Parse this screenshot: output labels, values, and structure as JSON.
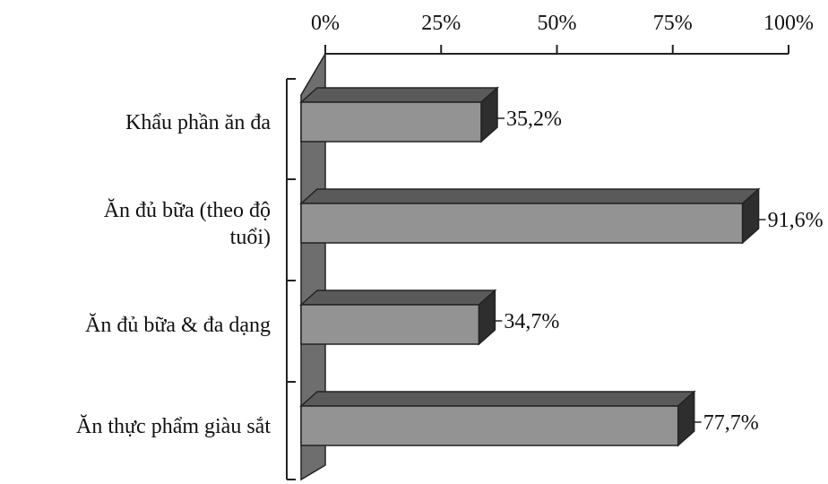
{
  "chart_data": {
    "type": "bar",
    "orientation": "horizontal",
    "style": "3d",
    "categories": [
      [
        "Khẩu phần ăn đa"
      ],
      [
        "Ăn đủ bữa (theo độ",
        "tuổi)"
      ],
      [
        "Ăn đủ bữa & đa dạng"
      ],
      [
        "Ăn thực phẩm giàu sắt"
      ]
    ],
    "values": [
      35.2,
      91.6,
      34.7,
      77.7
    ],
    "value_labels": [
      "35,2%",
      "91,6%",
      "34,7%",
      "77,7%"
    ],
    "xlim": [
      0,
      100
    ],
    "x_ticks": [
      0,
      25,
      50,
      75,
      100
    ],
    "x_tick_labels": [
      "0%",
      "25%",
      "50%",
      "75%",
      "100%"
    ],
    "x_axis_position": "top",
    "grid": false,
    "legend": "none",
    "title": "",
    "xlabel": "",
    "ylabel": ""
  },
  "colors": {
    "bar_front": "#939393",
    "bar_top": "#5a5a5a",
    "bar_side": "#2e2e2e",
    "wall": "#6e6e6e",
    "axis": "#222222",
    "text": "#111111"
  }
}
